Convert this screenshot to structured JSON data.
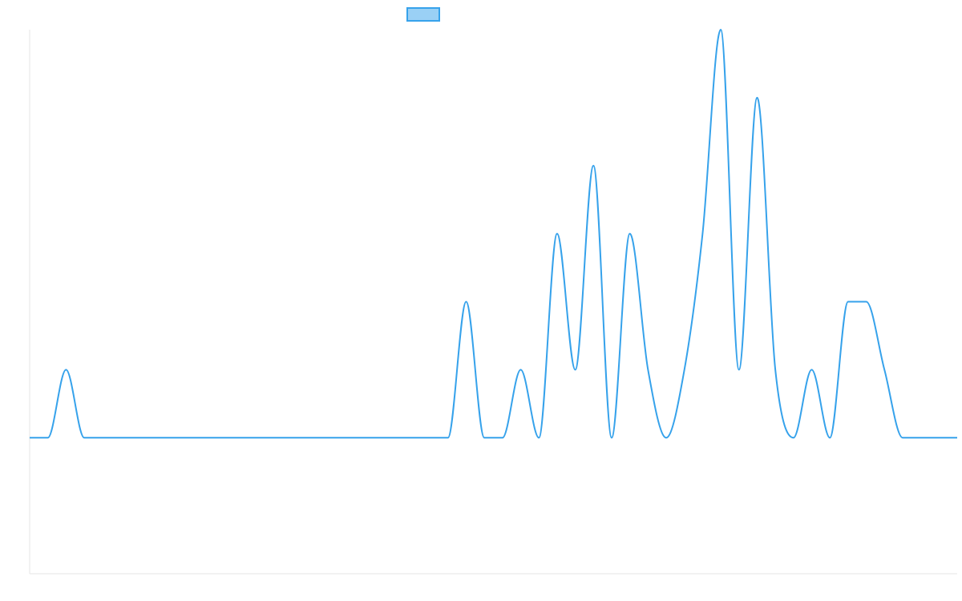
{
  "chart_data": {
    "type": "line",
    "title": "",
    "xlabel": "",
    "ylabel": "",
    "legend": {
      "placement": "top-center",
      "entries": [
        {
          "name": "",
          "color": "#36A2EB",
          "fill": "#9AD0F5"
        }
      ]
    },
    "grid": false,
    "xlim": [
      0,
      51
    ],
    "ylim": [
      -2,
      6
    ],
    "series": [
      {
        "name": "",
        "color": "#36A2EB",
        "x": [
          0,
          1,
          2,
          3,
          4,
          5,
          6,
          7,
          8,
          9,
          10,
          11,
          12,
          13,
          14,
          15,
          16,
          17,
          18,
          19,
          20,
          21,
          22,
          23,
          24,
          25,
          26,
          27,
          28,
          29,
          30,
          31,
          32,
          33,
          34,
          35,
          36,
          37,
          38,
          39,
          40,
          41,
          42,
          43,
          44,
          45,
          46,
          47,
          48,
          49,
          50,
          51
        ],
        "values": [
          0,
          0,
          1,
          0,
          0,
          0,
          0,
          0,
          0,
          0,
          0,
          0,
          0,
          0,
          0,
          0,
          0,
          0,
          0,
          0,
          0,
          0,
          0,
          0,
          2,
          0,
          0,
          1,
          0,
          3,
          1,
          4,
          0,
          3,
          1,
          0,
          1,
          3,
          6,
          1,
          5,
          1,
          0,
          1,
          0,
          2,
          2,
          1,
          0,
          0,
          0,
          0
        ]
      }
    ]
  }
}
